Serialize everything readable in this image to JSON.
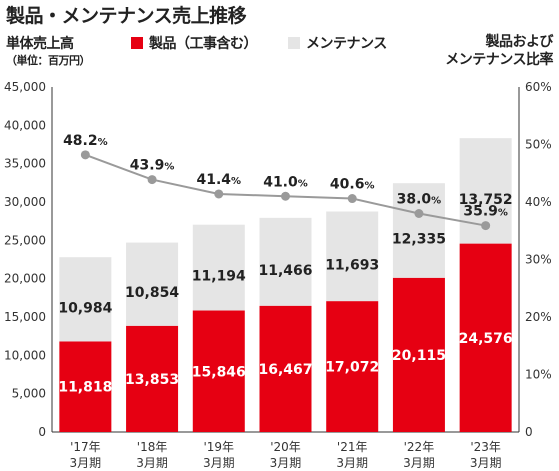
{
  "title": "製品・メンテナンス売上推移",
  "left_axis_title": "単体売上高",
  "left_axis_unit": "（単位：百万円）",
  "right_axis_title_line1": "製品および",
  "right_axis_title_line2": "メンテナンス比率",
  "legend": [
    {
      "label": "製品（工事含む）",
      "color": "#e60012"
    },
    {
      "label": "メンテナンス",
      "color": "#e5e5e5"
    }
  ],
  "colors": {
    "product": "#e60012",
    "maintenance": "#e5e5e5",
    "ratio_line": "#9a9a9a",
    "axis": "#333333"
  },
  "chart_data": {
    "type": "bar",
    "stacked": true,
    "categories": [
      "'17年\n3月期",
      "'18年\n3月期",
      "'19年\n3月期",
      "'20年\n3月期",
      "'21年\n3月期",
      "'22年\n3月期",
      "'23年\n3月期"
    ],
    "series": [
      {
        "name": "製品（工事含む）",
        "values": [
          11818,
          13853,
          15846,
          16467,
          17072,
          20115,
          24576
        ],
        "labels": [
          "11,818",
          "13,853",
          "15,846",
          "16,467",
          "17,072",
          "20,115",
          "24,576"
        ]
      },
      {
        "name": "メンテナンス",
        "values": [
          10984,
          10854,
          11194,
          11466,
          11693,
          12335,
          13752
        ],
        "labels": [
          "10,984",
          "10,854",
          "11,194",
          "11,466",
          "11,693",
          "12,335",
          "13,752"
        ]
      }
    ],
    "ratio": {
      "values": [
        48.2,
        43.9,
        41.4,
        41.0,
        40.6,
        38.0,
        35.9
      ],
      "labels": [
        "48.2",
        "43.9",
        "41.4",
        "41.0",
        "40.6",
        "38.0",
        "35.9"
      ],
      "unit": "%"
    },
    "y_left": {
      "min": 0,
      "max": 45000,
      "ticks": [
        0,
        5000,
        10000,
        15000,
        20000,
        25000,
        30000,
        35000,
        40000,
        45000
      ],
      "tick_labels": [
        "0",
        "5,000",
        "10,000",
        "15,000",
        "20,000",
        "25,000",
        "30,000",
        "35,000",
        "40,000",
        "45,000"
      ]
    },
    "y_right": {
      "min": 0,
      "max": 60,
      "ticks": [
        0,
        10,
        20,
        30,
        40,
        50,
        60
      ],
      "tick_labels": [
        "0",
        "10%",
        "20%",
        "30%",
        "40%",
        "50%",
        "60%"
      ]
    },
    "grid": false
  }
}
